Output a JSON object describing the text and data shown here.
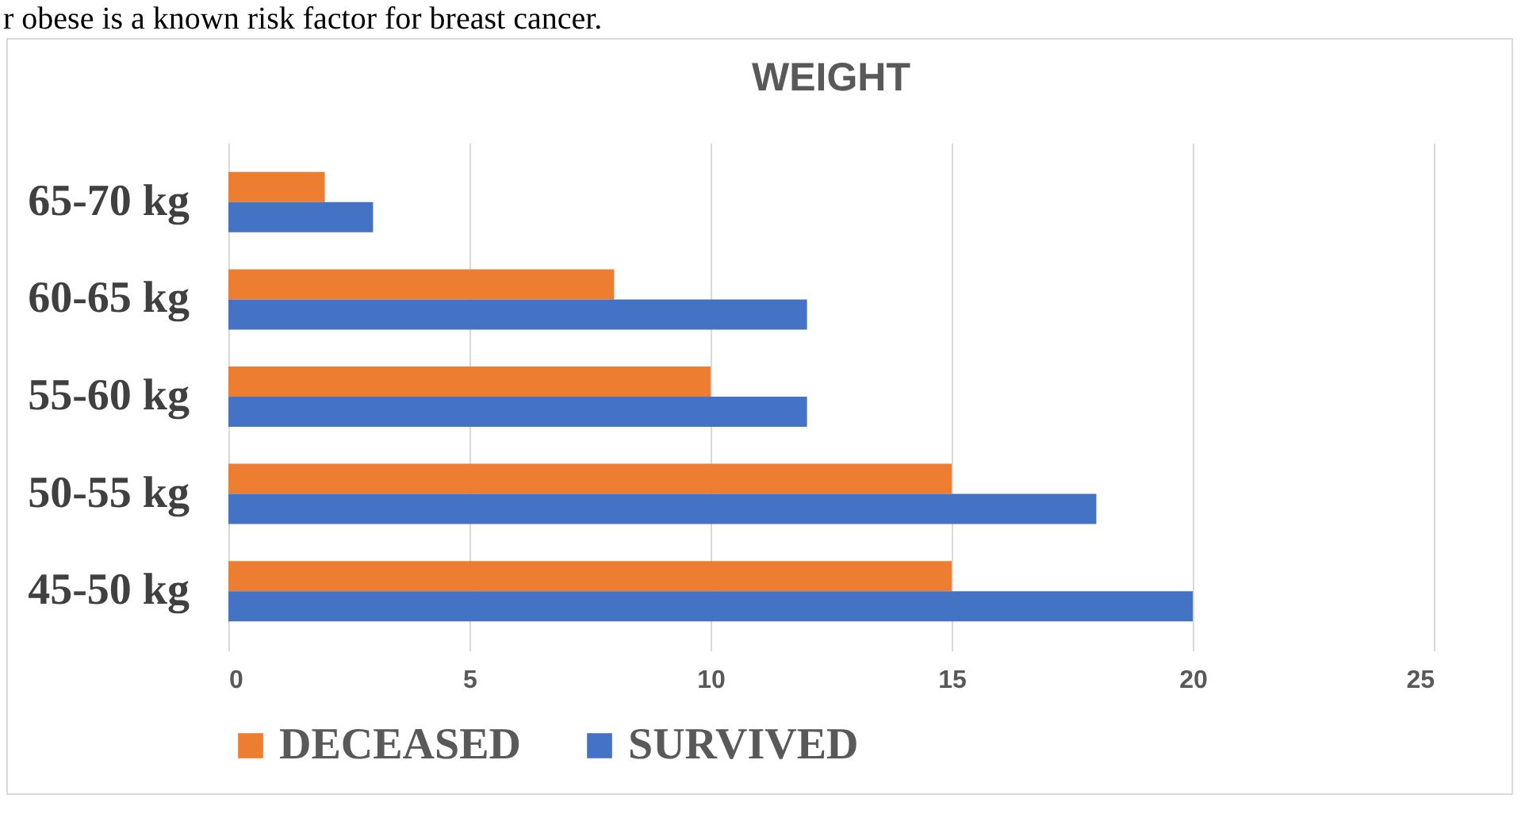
{
  "chart_data": {
    "type": "bar",
    "orientation": "horizontal",
    "title": "WEIGHT",
    "annotations": [
      "r obese is a known risk factor for breast cancer."
    ],
    "categories": [
      "65-70 kg",
      "60-65 kg",
      "55-60 kg",
      "50-55 kg",
      "45-50 kg"
    ],
    "series": [
      {
        "name": "DECEASED",
        "color": "#ed7d31",
        "values": [
          2,
          8,
          10,
          15,
          15
        ]
      },
      {
        "name": "SURVIVED",
        "color": "#4472c4",
        "values": [
          3,
          12,
          12,
          18,
          20
        ]
      }
    ],
    "xlim": [
      0,
      25
    ],
    "xticks": [
      0,
      5,
      10,
      15,
      20,
      25
    ],
    "grid": "x",
    "legend": "bottom"
  }
}
